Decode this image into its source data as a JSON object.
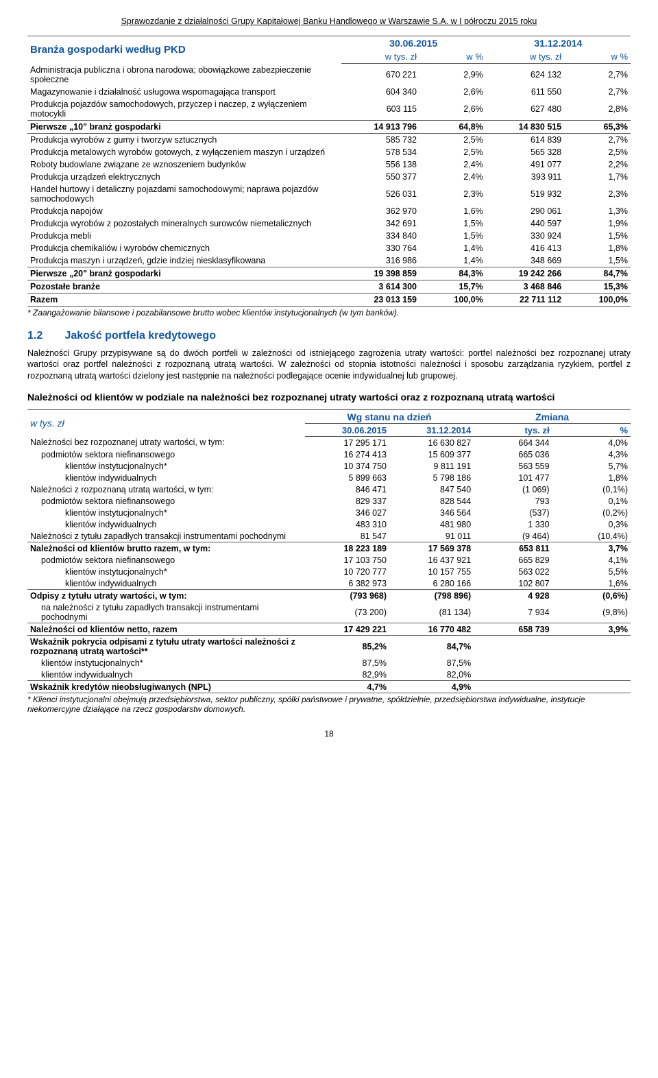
{
  "header": "Sprawozdanie z działalności Grupy Kapitałowej Banku Handlowego w Warszawie S.A. w I półroczu 2015 roku",
  "table1": {
    "title": "Branża gospodarki według PKD",
    "date1": "30.06.2015",
    "date2": "31.12.2014",
    "sub1": "w tys. zł",
    "sub2": "w %",
    "rows": [
      {
        "label": "Administracja publiczna i obrona narodowa; obowiązkowe zabezpieczenie społeczne",
        "v": [
          "670 221",
          "2,9%",
          "624 132",
          "2,7%"
        ]
      },
      {
        "label": "Magazynowanie i działalność usługowa wspomagająca transport",
        "v": [
          "604 340",
          "2,6%",
          "611 550",
          "2,7%"
        ]
      },
      {
        "label": "Produkcja pojazdów samochodowych, przyczep i naczep, z wyłączeniem motocykli",
        "v": [
          "603 115",
          "2,6%",
          "627 480",
          "2,8%"
        ]
      },
      {
        "label": "Pierwsze „10\" branż gospodarki",
        "v": [
          "14 913 796",
          "64,8%",
          "14 830 515",
          "65,3%"
        ],
        "bold": true,
        "borders": "tb"
      },
      {
        "label": "Produkcja wyrobów z gumy i tworzyw sztucznych",
        "v": [
          "585 732",
          "2,5%",
          "614 839",
          "2,7%"
        ]
      },
      {
        "label": "Produkcja metalowych wyrobów gotowych, z wyłączeniem maszyn i urządzeń",
        "v": [
          "578 534",
          "2,5%",
          "565 328",
          "2,5%"
        ]
      },
      {
        "label": "Roboty budowlane związane ze wznoszeniem budynków",
        "v": [
          "556 138",
          "2,4%",
          "491 077",
          "2,2%"
        ]
      },
      {
        "label": "Produkcja urządzeń elektrycznych",
        "v": [
          "550 377",
          "2,4%",
          "393 911",
          "1,7%"
        ]
      },
      {
        "label": "Handel hurtowy i detaliczny pojazdami samochodowymi; naprawa pojazdów samochodowych",
        "v": [
          "526 031",
          "2,3%",
          "519 932",
          "2,3%"
        ]
      },
      {
        "label": "Produkcja napojów",
        "v": [
          "362 970",
          "1,6%",
          "290 061",
          "1,3%"
        ]
      },
      {
        "label": "Produkcja wyrobów z pozostałych mineralnych surowców niemetalicznych",
        "v": [
          "342 691",
          "1,5%",
          "440 597",
          "1,9%"
        ]
      },
      {
        "label": "Produkcja mebli",
        "v": [
          "334 840",
          "1,5%",
          "330 924",
          "1,5%"
        ]
      },
      {
        "label": "Produkcja chemikaliów i wyrobów chemicznych",
        "v": [
          "330 764",
          "1,4%",
          "416 413",
          "1,8%"
        ]
      },
      {
        "label": "Produkcja maszyn i urządzeń, gdzie indziej niesklasyfikowana",
        "v": [
          "316 986",
          "1,4%",
          "348 669",
          "1,5%"
        ]
      },
      {
        "label": "Pierwsze „20\" branż gospodarki",
        "v": [
          "19 398 859",
          "84,3%",
          "19 242 266",
          "84,7%"
        ],
        "bold": true,
        "borders": "tb"
      },
      {
        "label": "Pozostałe branże",
        "v": [
          "3 614 300",
          "15,7%",
          "3 468 846",
          "15,3%"
        ],
        "bold": true,
        "borders": "b"
      },
      {
        "label": "Razem",
        "v": [
          "23 013 159",
          "100,0%",
          "22 711 112",
          "100,0%"
        ],
        "bold": true,
        "borders": "b"
      }
    ],
    "footnote": "* Zaangażowanie bilansowe i pozabilansowe brutto wobec klientów instytucjonalnych (w tym banków)."
  },
  "section": {
    "num": "1.2",
    "title": "Jakość portfela kredytowego",
    "para": "Należności Grupy przypisywane są do dwóch portfeli w zależności od istniejącego zagrożenia utraty wartości: portfel należności bez rozpoznanej utraty wartości oraz portfel należności z rozpoznaną utratą wartości. W zależności od stopnia istotności należności i sposobu zarządzania ryzykiem, portfel z rozpoznaną utratą wartości dzielony jest następnie na należności podlegające ocenie indywidualnej lub grupowej.",
    "sub": "Należności od klientów w podziale na należności bez rozpoznanej utraty wartości oraz z rozpoznaną utratą wartości"
  },
  "table2": {
    "left": "w tys. zł",
    "h1": "Wg stanu na dzień",
    "h2": "Zmiana",
    "c1": "30.06.2015",
    "c2": "31.12.2014",
    "c3": "tys. zł",
    "c4": "%",
    "rows": [
      {
        "label": "Należności bez rozpoznanej utraty wartości, w tym:",
        "i": 0,
        "v": [
          "17 295 171",
          "16 630 827",
          "664 344",
          "4,0%"
        ]
      },
      {
        "label": "podmiotów sektora niefinansowego",
        "i": 1,
        "v": [
          "16 274 413",
          "15 609 377",
          "665 036",
          "4,3%"
        ]
      },
      {
        "label": "klientów instytucjonalnych*",
        "i": 2,
        "v": [
          "10 374 750",
          "9 811 191",
          "563 559",
          "5,7%"
        ]
      },
      {
        "label": "klientów indywidualnych",
        "i": 2,
        "v": [
          "5 899 663",
          "5 798 186",
          "101 477",
          "1,8%"
        ]
      },
      {
        "label": "Należności z rozpoznaną utratą wartości, w tym:",
        "i": 0,
        "v": [
          "846 471",
          "847 540",
          "(1 069)",
          "(0,1%)"
        ]
      },
      {
        "label": "podmiotów sektora niefinansowego",
        "i": 1,
        "v": [
          "829 337",
          "828 544",
          "793",
          "0,1%"
        ]
      },
      {
        "label": "klientów instytucjonalnych*",
        "i": 2,
        "v": [
          "346 027",
          "346 564",
          "(537)",
          "(0,2%)"
        ]
      },
      {
        "label": "klientów indywidualnych",
        "i": 2,
        "v": [
          "483 310",
          "481 980",
          "1 330",
          "0,3%"
        ]
      },
      {
        "label": "Należności z tytułu zapadłych transakcji instrumentami pochodnymi",
        "i": 0,
        "v": [
          "81 547",
          "91 011",
          "(9 464)",
          "(10,4%)"
        ],
        "borders": "b"
      },
      {
        "label": "Należności od klientów brutto razem, w tym:",
        "i": 0,
        "v": [
          "18 223 189",
          "17 569 378",
          "653 811",
          "3,7%"
        ],
        "bold": true
      },
      {
        "label": "podmiotów sektora niefinansowego",
        "i": 1,
        "v": [
          "17 103 750",
          "16 437 921",
          "665 829",
          "4,1%"
        ]
      },
      {
        "label": "klientów instytucjonalnych*",
        "i": 2,
        "v": [
          "10 720 777",
          "10 157 755",
          "563 022",
          "5,5%"
        ]
      },
      {
        "label": "klientów indywidualnych",
        "i": 2,
        "v": [
          "6 382 973",
          "6 280 166",
          "102 807",
          "1,6%"
        ],
        "borders": "b"
      },
      {
        "label": "Odpisy z tytułu utraty wartości, w tym:",
        "i": 0,
        "v": [
          "(793 968)",
          "(798 896)",
          "4 928",
          "(0,6%)"
        ],
        "bold": true
      },
      {
        "label": "na należności z tytułu zapadłych transakcji instrumentami pochodnymi",
        "i": 1,
        "v": [
          "(73 200)",
          "(81 134)",
          "7 934",
          "(9,8%)"
        ],
        "borders": "b"
      },
      {
        "label": "Należności od klientów netto, razem",
        "i": 0,
        "v": [
          "17 429 221",
          "16 770 482",
          "658 739",
          "3,9%"
        ],
        "bold": true,
        "borders": "b"
      },
      {
        "label": "Wskaźnik pokrycia odpisami z tytułu utraty wartości należności z rozpoznaną utratą wartości**",
        "i": 0,
        "v": [
          "85,2%",
          "84,7%",
          "",
          ""
        ],
        "bold": true
      },
      {
        "label": "klientów instytucjonalnych*",
        "i": 1,
        "v": [
          "87,5%",
          "87,5%",
          "",
          ""
        ]
      },
      {
        "label": "klientów indywidualnych",
        "i": 1,
        "v": [
          "82,9%",
          "82,0%",
          "",
          ""
        ],
        "borders": "b"
      },
      {
        "label": "Wskaźnik kredytów nieobsługiwanych (NPL)",
        "i": 0,
        "v": [
          "4,7%",
          "4,9%",
          "",
          ""
        ],
        "bold": true,
        "borders": "b"
      }
    ],
    "footnote": "* Klienci instytucjonalni obejmują przedsiębiorstwa, sektor publiczny, spółki państwowe i prywatne, spółdzielnie, przedsiębiorstwa indywidualne, instytucje niekomercyjne działające na rzecz gospodarstw domowych."
  },
  "page": "18"
}
